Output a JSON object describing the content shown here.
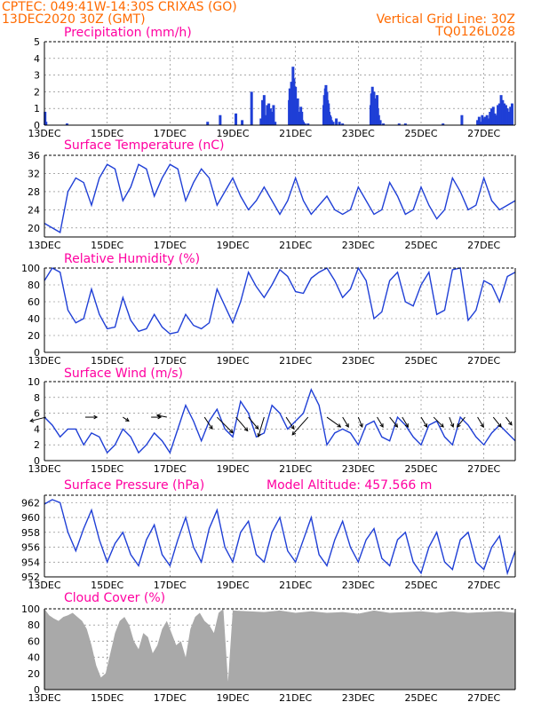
{
  "header": {
    "left_line1": "CPTEC:   049:41W-14:30S   CRIXAS (GO)",
    "left_line2": "13DEC2020 30Z (GMT)",
    "right_line1": "Vertical Grid Line: 30Z",
    "right_line2": "TQ0126L028"
  },
  "colors": {
    "line": "#1f3fd6",
    "bar": "#1f3fd6",
    "cloud": "#a9a9a9",
    "title": "#ff00a0",
    "header": "#ff6a00"
  },
  "x_dates": [
    "13DEC",
    "15DEC",
    "17DEC",
    "19DEC",
    "21DEC",
    "23DEC",
    "25DEC",
    "27DEC"
  ],
  "chart_data": [
    {
      "type": "bar",
      "title": "Precipitation (mm/h)",
      "ylim": [
        0,
        5
      ],
      "yticks": [
        0,
        1,
        2,
        3,
        4,
        5
      ],
      "x_days": [
        0.02,
        0.05,
        0.72,
        5.2,
        5.6,
        6.1,
        6.3,
        6.6,
        6.9,
        6.95,
        7.0,
        7.05,
        7.1,
        7.15,
        7.2,
        7.25,
        7.3,
        7.35,
        7.8,
        7.82,
        7.85,
        7.87,
        7.9,
        7.92,
        7.95,
        7.97,
        8.0,
        8.02,
        8.05,
        8.07,
        8.1,
        8.12,
        8.15,
        8.17,
        8.2,
        8.22,
        8.25,
        8.27,
        8.3,
        8.4,
        8.9,
        8.92,
        8.95,
        8.97,
        9.0,
        9.02,
        9.05,
        9.07,
        9.1,
        9.12,
        9.15,
        9.2,
        9.3,
        9.4,
        9.5,
        10.4,
        10.42,
        10.45,
        10.47,
        10.5,
        10.52,
        10.55,
        10.57,
        10.6,
        10.62,
        10.65,
        10.7,
        10.8,
        11.3,
        11.5,
        12.7,
        13.3,
        13.8,
        13.85,
        13.9,
        13.95,
        14.0,
        14.05,
        14.1,
        14.15,
        14.2,
        14.25,
        14.3,
        14.35,
        14.4,
        14.45,
        14.5,
        14.55,
        14.6,
        14.65,
        14.7,
        14.75,
        14.8,
        14.85,
        14.9
      ],
      "values": [
        0.8,
        0.2,
        0.1,
        0.2,
        0.6,
        0.7,
        0.3,
        2.0,
        0.4,
        1.5,
        1.8,
        0.6,
        1.2,
        1.3,
        1.0,
        0.8,
        1.2,
        0.2,
        1.5,
        2.2,
        2.0,
        2.6,
        1.5,
        3.5,
        2.8,
        1.8,
        2.3,
        1.5,
        1.2,
        1.6,
        0.5,
        0.3,
        0.8,
        1.1,
        0.8,
        0.3,
        0.2,
        0.1,
        0.1,
        0.1,
        1.2,
        1.8,
        2.2,
        2.4,
        2.0,
        1.5,
        1.3,
        0.8,
        0.6,
        0.5,
        0.3,
        0.2,
        0.4,
        0.2,
        0.1,
        1.2,
        1.9,
        2.3,
        1.7,
        2.0,
        1.4,
        1.6,
        1.2,
        1.8,
        1.0,
        0.6,
        0.3,
        0.1,
        0.1,
        0.1,
        0.1,
        0.6,
        0.3,
        0.5,
        0.2,
        0.6,
        0.4,
        0.5,
        0.6,
        0.4,
        0.8,
        1.0,
        1.1,
        0.7,
        0.6,
        1.2,
        1.3,
        1.8,
        1.5,
        1.3,
        1.2,
        1.0,
        0.8,
        1.1,
        1.3
      ]
    },
    {
      "type": "line",
      "title": "Surface Temperature (nC)",
      "ylim": [
        18,
        36
      ],
      "yticks": [
        20,
        24,
        28,
        32,
        36
      ],
      "x_days": [
        0,
        0.25,
        0.5,
        0.75,
        1,
        1.25,
        1.5,
        1.75,
        2,
        2.25,
        2.5,
        2.75,
        3,
        3.25,
        3.5,
        3.75,
        4,
        4.25,
        4.5,
        4.75,
        5,
        5.25,
        5.5,
        5.75,
        6,
        6.25,
        6.5,
        6.75,
        7,
        7.25,
        7.5,
        7.75,
        8,
        8.25,
        8.5,
        8.75,
        9,
        9.25,
        9.5,
        9.75,
        10,
        10.25,
        10.5,
        10.75,
        11,
        11.25,
        11.5,
        11.75,
        12,
        12.25,
        12.5,
        12.75,
        13,
        13.25,
        13.5,
        13.75,
        14,
        14.25,
        14.5,
        14.75,
        15
      ],
      "values": [
        21,
        20,
        19,
        28,
        31,
        30,
        25,
        31,
        34,
        33,
        26,
        29,
        34,
        33,
        27,
        31,
        34,
        33,
        26,
        30,
        33,
        31,
        25,
        28,
        31,
        27,
        24,
        26,
        29,
        26,
        23,
        26,
        31,
        26,
        23,
        25,
        27,
        24,
        23,
        24,
        29,
        26,
        23,
        24,
        30,
        27,
        23,
        24,
        29,
        25,
        22,
        24,
        31,
        28,
        24,
        25,
        31,
        26,
        24,
        25,
        26
      ]
    },
    {
      "type": "line",
      "title": "Relative Humidity (%)",
      "ylim": [
        0,
        100
      ],
      "yticks": [
        0,
        20,
        40,
        60,
        80,
        100
      ],
      "x_days": [
        0,
        0.25,
        0.5,
        0.75,
        1,
        1.25,
        1.5,
        1.75,
        2,
        2.25,
        2.5,
        2.75,
        3,
        3.25,
        3.5,
        3.75,
        4,
        4.25,
        4.5,
        4.75,
        5,
        5.25,
        5.5,
        5.75,
        6,
        6.25,
        6.5,
        6.75,
        7,
        7.25,
        7.5,
        7.75,
        8,
        8.25,
        8.5,
        8.75,
        9,
        9.25,
        9.5,
        9.75,
        10,
        10.25,
        10.5,
        10.75,
        11,
        11.25,
        11.5,
        11.75,
        12,
        12.25,
        12.5,
        12.75,
        13,
        13.25,
        13.5,
        13.75,
        14,
        14.25,
        14.5,
        14.75,
        15
      ],
      "values": [
        85,
        100,
        95,
        50,
        35,
        40,
        75,
        45,
        28,
        30,
        65,
        38,
        25,
        28,
        45,
        30,
        22,
        24,
        45,
        32,
        28,
        35,
        75,
        55,
        35,
        60,
        95,
        78,
        65,
        80,
        98,
        90,
        72,
        70,
        88,
        95,
        100,
        85,
        65,
        75,
        100,
        85,
        40,
        48,
        85,
        95,
        60,
        55,
        80,
        95,
        45,
        50,
        98,
        100,
        38,
        50,
        85,
        80,
        60,
        90,
        95
      ]
    },
    {
      "type": "line",
      "title": "Surface Wind (m/s)",
      "ylim": [
        0,
        10
      ],
      "yticks": [
        0,
        2,
        4,
        6,
        8,
        10
      ],
      "x_days": [
        0,
        0.25,
        0.5,
        0.75,
        1,
        1.25,
        1.5,
        1.75,
        2,
        2.25,
        2.5,
        2.75,
        3,
        3.25,
        3.5,
        3.75,
        4,
        4.25,
        4.5,
        4.75,
        5,
        5.25,
        5.5,
        5.75,
        6,
        6.25,
        6.5,
        6.75,
        7,
        7.25,
        7.5,
        7.75,
        8,
        8.25,
        8.5,
        8.75,
        9,
        9.25,
        9.5,
        9.75,
        10,
        10.25,
        10.5,
        10.75,
        11,
        11.25,
        11.5,
        11.75,
        12,
        12.25,
        12.5,
        12.75,
        13,
        13.25,
        13.5,
        13.75,
        14,
        14.25,
        14.5,
        14.75,
        15
      ],
      "values": [
        5.5,
        4.5,
        3.0,
        4.0,
        4.0,
        2.0,
        3.5,
        3.0,
        1.0,
        2.0,
        4.0,
        3.0,
        1.0,
        2.0,
        3.5,
        2.5,
        1.0,
        4.0,
        7.0,
        5.0,
        2.5,
        5.0,
        6.5,
        4.0,
        3.0,
        7.5,
        6.0,
        3.0,
        3.5,
        7.0,
        6.0,
        4.0,
        5.0,
        6.0,
        9.0,
        7.0,
        2.0,
        3.5,
        4.0,
        3.5,
        2.0,
        4.5,
        5.0,
        3.0,
        2.5,
        5.5,
        4.5,
        3.0,
        2.0,
        4.5,
        5.0,
        3.0,
        2.0,
        5.5,
        4.5,
        3.0,
        2.0,
        3.5,
        4.5,
        3.5,
        2.5
      ],
      "barb_days": [
        0.05,
        1.3,
        2.5,
        3.4,
        3.9,
        5.1,
        5.5,
        6.1,
        6.5,
        7.0,
        7.7,
        8.4,
        9.0,
        9.5,
        10.0,
        10.6,
        11.0,
        11.4,
        12.0,
        12.4,
        12.9,
        13.4,
        13.8,
        14.3,
        14.7
      ],
      "barb_dx": [
        -0.8,
        0.6,
        0.3,
        0.5,
        -0.5,
        0.4,
        0.8,
        0.6,
        0.5,
        -0.3,
        0.4,
        -0.8,
        0.7,
        0.3,
        0.2,
        0.3,
        0.4,
        0.3,
        0.3,
        0.5,
        0.2,
        -0.4,
        0.3,
        0.4,
        0.3
      ],
      "barb_dy": [
        -0.2,
        0.0,
        -0.2,
        0.0,
        0.1,
        -0.6,
        -0.8,
        -0.7,
        -0.6,
        -1.0,
        -0.6,
        -0.9,
        -0.5,
        -0.5,
        -0.5,
        -0.5,
        -0.5,
        -0.5,
        -0.5,
        -0.5,
        -0.5,
        -0.5,
        -0.5,
        -0.5,
        -0.4
      ]
    },
    {
      "type": "line",
      "title": "Surface Pressure (hPa)",
      "subtitle": "Model Altitude: 457.566  m",
      "ylim": [
        952,
        963
      ],
      "yticks": [
        952,
        954,
        956,
        958,
        960,
        962
      ],
      "x_days": [
        0,
        0.25,
        0.5,
        0.75,
        1,
        1.25,
        1.5,
        1.75,
        2,
        2.25,
        2.5,
        2.75,
        3,
        3.25,
        3.5,
        3.75,
        4,
        4.25,
        4.5,
        4.75,
        5,
        5.25,
        5.5,
        5.75,
        6,
        6.25,
        6.5,
        6.75,
        7,
        7.25,
        7.5,
        7.75,
        8,
        8.25,
        8.5,
        8.75,
        9,
        9.25,
        9.5,
        9.75,
        10,
        10.25,
        10.5,
        10.75,
        11,
        11.25,
        11.5,
        11.75,
        12,
        12.25,
        12.5,
        12.75,
        13,
        13.25,
        13.5,
        13.75,
        14,
        14.25,
        14.5,
        14.75,
        15
      ],
      "values": [
        961.8,
        962.4,
        962.0,
        958.0,
        955.5,
        958.5,
        961.0,
        957.0,
        954.0,
        956.5,
        958.0,
        955.0,
        953.5,
        957.0,
        959.0,
        955.0,
        953.5,
        957.0,
        960.0,
        956.0,
        954.0,
        958.5,
        961.0,
        956.0,
        954.0,
        958.0,
        959.5,
        955.0,
        954.0,
        958.0,
        960.0,
        955.5,
        954.0,
        957.0,
        960.0,
        955.0,
        953.5,
        957.0,
        959.5,
        956.0,
        954.0,
        957.0,
        958.5,
        954.5,
        953.5,
        957.0,
        958.0,
        954.0,
        952.5,
        956.0,
        958.0,
        954.0,
        953.0,
        957.0,
        958.0,
        954.0,
        953.0,
        956.0,
        957.5,
        952.5,
        955.5
      ]
    },
    {
      "type": "area",
      "title": "Cloud Cover (%)",
      "ylim": [
        0,
        100
      ],
      "yticks": [
        0,
        20,
        40,
        60,
        80,
        100
      ],
      "x_days": [
        0,
        0.15,
        0.3,
        0.45,
        0.6,
        0.75,
        0.9,
        1.05,
        1.2,
        1.35,
        1.5,
        1.65,
        1.8,
        1.95,
        2.1,
        2.25,
        2.4,
        2.55,
        2.7,
        2.85,
        3.0,
        3.15,
        3.3,
        3.45,
        3.6,
        3.75,
        3.9,
        4.05,
        4.2,
        4.35,
        4.5,
        4.65,
        4.8,
        4.95,
        5.1,
        5.25,
        5.4,
        5.55,
        5.7,
        5.85,
        6.0,
        6.5,
        7.0,
        7.5,
        8.0,
        8.5,
        9.0,
        9.5,
        10.0,
        10.5,
        11.0,
        11.5,
        12.0,
        12.5,
        13.0,
        13.5,
        14.0,
        14.5,
        15.0
      ],
      "values": [
        100,
        92,
        88,
        85,
        90,
        92,
        95,
        90,
        85,
        75,
        55,
        30,
        15,
        20,
        45,
        70,
        85,
        90,
        80,
        60,
        50,
        70,
        65,
        45,
        55,
        75,
        85,
        70,
        55,
        60,
        40,
        75,
        90,
        95,
        85,
        80,
        70,
        95,
        100,
        10,
        98,
        97,
        96,
        98,
        95,
        97,
        95,
        96,
        94,
        98,
        95,
        96,
        97,
        95,
        97,
        95,
        96,
        97,
        95
      ]
    }
  ]
}
